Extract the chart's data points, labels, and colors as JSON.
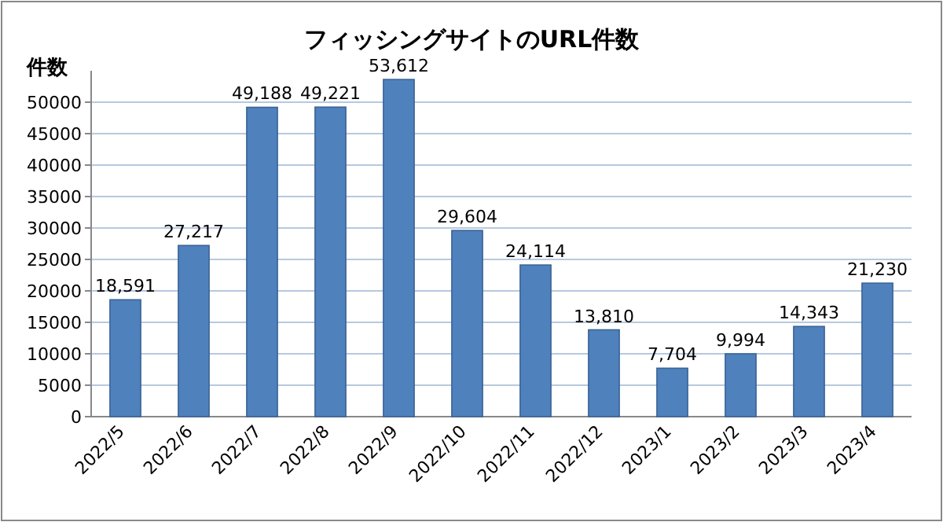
{
  "chart_data": {
    "type": "bar",
    "title": "フィッシングサイトのURL件数",
    "ylabel": "件数",
    "categories": [
      "2022/5",
      "2022/6",
      "2022/7",
      "2022/8",
      "2022/9",
      "2022/10",
      "2022/11",
      "2022/12",
      "2023/1",
      "2023/2",
      "2023/3",
      "2023/4"
    ],
    "values": [
      18591,
      27217,
      49188,
      49221,
      53612,
      29604,
      24114,
      13810,
      7704,
      9994,
      14343,
      21230
    ],
    "color": "#4f81bd",
    "ylim": [
      0,
      55000
    ],
    "yticks": [
      0,
      5000,
      10000,
      15000,
      20000,
      25000,
      30000,
      35000,
      40000,
      45000,
      50000
    ],
    "grid": "y",
    "value_labels": [
      "18,591",
      "27,217",
      "49,188",
      "49,221",
      "53,612",
      "29,604",
      "24,114",
      "13,810",
      "7,704",
      "9,994",
      "14,343",
      "21,230"
    ]
  }
}
